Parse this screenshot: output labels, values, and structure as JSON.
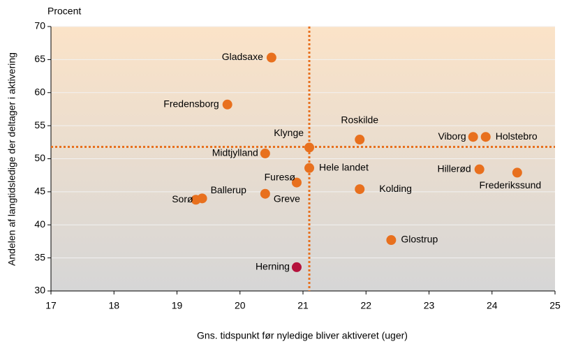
{
  "chart_data": {
    "type": "scatter",
    "y_unit_label": "Procent",
    "x_label": "Gns. tidspunkt før nyledige bliver aktiveret (uger)",
    "y_label": "Andelen af langtidsledige der deltager i aktivering",
    "xlim": [
      17,
      25
    ],
    "xticks": [
      17,
      18,
      19,
      20,
      21,
      22,
      23,
      24,
      25
    ],
    "ylim": [
      30,
      70
    ],
    "yticks": [
      30,
      35,
      40,
      45,
      50,
      55,
      60,
      65,
      70
    ],
    "grid": true,
    "reference_lines": {
      "x": 21.1,
      "y": 51.8,
      "color": "#e8701e"
    },
    "series": [
      {
        "labels": [
          "Gladsaxe",
          "Fredensborg",
          "Roskilde",
          "Viborg",
          "Holstebro",
          "Klynge",
          "Midtjylland",
          "Hele landet",
          "Hillerød",
          "Frederikssund",
          "Furesø",
          "Kolding",
          "Ballerup",
          "Sorø",
          "Greve",
          "Glostrup",
          "Herning"
        ],
        "x": [
          20.5,
          19.8,
          21.9,
          23.7,
          23.9,
          21.1,
          20.4,
          21.1,
          23.8,
          24.4,
          20.9,
          21.9,
          19.4,
          19.3,
          20.4,
          22.4,
          20.9
        ],
        "values": [
          65.3,
          58.2,
          52.9,
          53.3,
          53.3,
          51.7,
          50.8,
          48.6,
          48.4,
          47.9,
          46.4,
          45.4,
          44.0,
          43.8,
          44.7,
          37.7,
          33.6
        ],
        "colors": [
          "#e8701e",
          "#e8701e",
          "#e8701e",
          "#e8701e",
          "#e8701e",
          "#e8701e",
          "#e8701e",
          "#e8701e",
          "#e8701e",
          "#e8701e",
          "#e8701e",
          "#e8701e",
          "#e8701e",
          "#e8701e",
          "#e8701e",
          "#e8701e",
          "#b5123c"
        ]
      }
    ]
  }
}
